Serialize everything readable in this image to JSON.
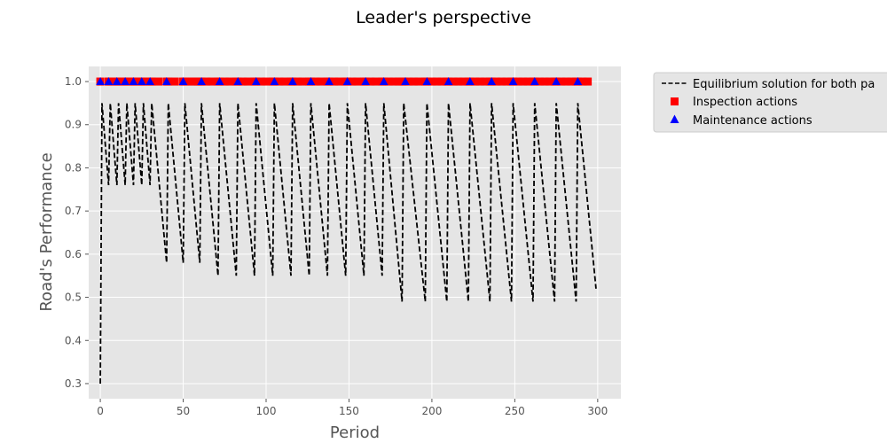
{
  "chart_data": {
    "type": "line",
    "title": "Leader's perspective",
    "xlabel": "Period",
    "ylabel": "Road's Performance",
    "xlim": [
      -7,
      314
    ],
    "ylim": [
      0.265,
      1.035
    ],
    "xticks": [
      0,
      50,
      100,
      150,
      200,
      250,
      300
    ],
    "yticks": [
      0.3,
      0.4,
      0.5,
      0.6,
      0.7,
      0.8,
      0.9,
      1.0
    ],
    "grid": true,
    "legend_position": "outside-top-right",
    "series": [
      {
        "name": "Equilibrium solution for both pa",
        "kind": "line",
        "style": "dashed",
        "color": "#000000",
        "x": [
          0,
          1,
          5,
          6,
          10,
          11,
          15,
          16,
          20,
          21,
          25,
          26,
          30,
          31,
          40,
          41,
          50,
          51,
          60,
          61,
          71,
          72,
          82,
          83,
          93,
          94,
          104,
          105,
          115,
          116,
          126,
          127,
          137,
          138,
          148,
          149,
          159,
          160,
          170,
          171,
          182,
          183,
          196,
          197,
          209,
          210,
          222,
          223,
          235,
          236,
          248,
          249,
          261,
          262,
          274,
          275,
          287,
          288,
          299
        ],
        "y": [
          0.3,
          0.95,
          0.76,
          0.95,
          0.76,
          0.95,
          0.76,
          0.95,
          0.76,
          0.95,
          0.76,
          0.95,
          0.76,
          0.95,
          0.58,
          0.95,
          0.58,
          0.95,
          0.58,
          0.95,
          0.55,
          0.95,
          0.55,
          0.95,
          0.55,
          0.95,
          0.55,
          0.95,
          0.55,
          0.95,
          0.55,
          0.95,
          0.55,
          0.95,
          0.55,
          0.95,
          0.55,
          0.95,
          0.55,
          0.95,
          0.49,
          0.95,
          0.49,
          0.95,
          0.49,
          0.95,
          0.49,
          0.95,
          0.49,
          0.95,
          0.49,
          0.95,
          0.49,
          0.95,
          0.49,
          0.95,
          0.49,
          0.95,
          0.52
        ]
      },
      {
        "name": "Inspection actions",
        "kind": "scatter",
        "marker": "square",
        "color": "#ff0000",
        "x": [
          0,
          5,
          6,
          10,
          11,
          15,
          16,
          20,
          21,
          25,
          26,
          30,
          31,
          35,
          40,
          41,
          45,
          50,
          51,
          55,
          56,
          59,
          60,
          61,
          64,
          67,
          71,
          72,
          75,
          78,
          82,
          83,
          86,
          89,
          93,
          94,
          97,
          100,
          104,
          105,
          108,
          111,
          115,
          116,
          119,
          122,
          126,
          127,
          130,
          133,
          137,
          138,
          141,
          144,
          148,
          149,
          152,
          155,
          159,
          160,
          163,
          166,
          170,
          171,
          174,
          177,
          180,
          182,
          183,
          186,
          189,
          192,
          196,
          197,
          200,
          203,
          206,
          209,
          210,
          213,
          216,
          219,
          222,
          223,
          226,
          229,
          232,
          235,
          236,
          239,
          242,
          245,
          248,
          249,
          252,
          255,
          258,
          261,
          262,
          265,
          268,
          271,
          274,
          275,
          278,
          281,
          284,
          287,
          288,
          291,
          294
        ],
        "y": [
          1.0,
          1.0,
          1.0,
          1.0,
          1.0,
          1.0,
          1.0,
          1.0,
          1.0,
          1.0,
          1.0,
          1.0,
          1.0,
          1.0,
          1.0,
          1.0,
          1.0,
          1.0,
          1.0,
          1.0,
          1.0,
          1.0,
          1.0,
          1.0,
          1.0,
          1.0,
          1.0,
          1.0,
          1.0,
          1.0,
          1.0,
          1.0,
          1.0,
          1.0,
          1.0,
          1.0,
          1.0,
          1.0,
          1.0,
          1.0,
          1.0,
          1.0,
          1.0,
          1.0,
          1.0,
          1.0,
          1.0,
          1.0,
          1.0,
          1.0,
          1.0,
          1.0,
          1.0,
          1.0,
          1.0,
          1.0,
          1.0,
          1.0,
          1.0,
          1.0,
          1.0,
          1.0,
          1.0,
          1.0,
          1.0,
          1.0,
          1.0,
          1.0,
          1.0,
          1.0,
          1.0,
          1.0,
          1.0,
          1.0,
          1.0,
          1.0,
          1.0,
          1.0,
          1.0,
          1.0,
          1.0,
          1.0,
          1.0,
          1.0,
          1.0,
          1.0,
          1.0,
          1.0,
          1.0,
          1.0,
          1.0,
          1.0,
          1.0,
          1.0,
          1.0,
          1.0,
          1.0,
          1.0,
          1.0,
          1.0,
          1.0,
          1.0,
          1.0,
          1.0,
          1.0,
          1.0,
          1.0,
          1.0,
          1.0,
          1.0,
          1.0
        ]
      },
      {
        "name": "Maintenance actions",
        "kind": "scatter",
        "marker": "triangle",
        "color": "#0000ff",
        "x": [
          0,
          5,
          10,
          15,
          20,
          25,
          30,
          40,
          50,
          61,
          72,
          83,
          94,
          105,
          116,
          127,
          138,
          149,
          160,
          171,
          184,
          197,
          210,
          223,
          236,
          249,
          262,
          275,
          288
        ],
        "y": [
          1.0,
          1.0,
          1.0,
          1.0,
          1.0,
          1.0,
          1.0,
          1.0,
          1.0,
          1.0,
          1.0,
          1.0,
          1.0,
          1.0,
          1.0,
          1.0,
          1.0,
          1.0,
          1.0,
          1.0,
          1.0,
          1.0,
          1.0,
          1.0,
          1.0,
          1.0,
          1.0,
          1.0,
          1.0
        ]
      }
    ]
  }
}
